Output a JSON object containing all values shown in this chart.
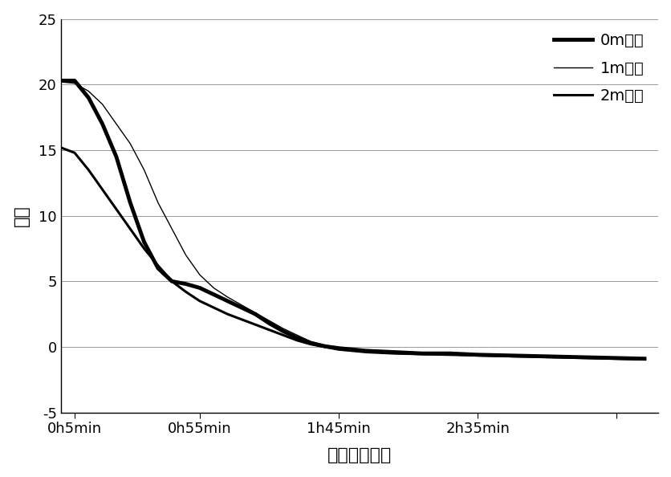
{
  "title": "",
  "xlabel": "预冷累计时间",
  "ylabel": "温度",
  "ylim": [
    -5,
    25
  ],
  "yticks": [
    -5,
    0,
    5,
    10,
    15,
    20,
    25
  ],
  "xtick_labels": [
    "0h5min",
    "0h55min",
    "1h45min",
    "2h35min"
  ],
  "xtick_positions": [
    5,
    50,
    100,
    150
  ],
  "xtick_minor_positions": [
    200
  ],
  "x_values": [
    0,
    5,
    10,
    15,
    20,
    25,
    30,
    35,
    40,
    45,
    50,
    55,
    60,
    65,
    70,
    75,
    80,
    85,
    90,
    95,
    100,
    110,
    120,
    130,
    140,
    150,
    160,
    170,
    180,
    190,
    200,
    210
  ],
  "line0_y": [
    20.3,
    20.3,
    19.0,
    17.0,
    14.5,
    11.0,
    8.0,
    6.0,
    5.0,
    4.8,
    4.5,
    4.0,
    3.5,
    3.0,
    2.5,
    1.8,
    1.2,
    0.7,
    0.3,
    0.05,
    -0.1,
    -0.3,
    -0.4,
    -0.5,
    -0.5,
    -0.6,
    -0.65,
    -0.7,
    -0.75,
    -0.8,
    -0.85,
    -0.9
  ],
  "line1_y": [
    20.2,
    20.1,
    19.5,
    18.5,
    17.0,
    15.5,
    13.5,
    11.0,
    9.0,
    7.0,
    5.5,
    4.5,
    3.8,
    3.2,
    2.6,
    2.0,
    1.4,
    0.9,
    0.4,
    0.1,
    -0.1,
    -0.3,
    -0.45,
    -0.5,
    -0.55,
    -0.6,
    -0.65,
    -0.7,
    -0.75,
    -0.8,
    -0.85,
    -0.9
  ],
  "line2_y": [
    15.2,
    14.8,
    13.5,
    12.0,
    10.5,
    9.0,
    7.5,
    6.2,
    5.0,
    4.2,
    3.5,
    3.0,
    2.5,
    2.1,
    1.7,
    1.3,
    0.9,
    0.5,
    0.2,
    0.0,
    -0.2,
    -0.4,
    -0.5,
    -0.55,
    -0.6,
    -0.65,
    -0.7,
    -0.75,
    -0.8,
    -0.85,
    -0.9,
    -0.95
  ],
  "line0_label": "0m距离",
  "line1_label": "1m距离",
  "line2_label": "2m距离",
  "line0_lw": 3.5,
  "line1_lw": 1.0,
  "line2_lw": 2.2,
  "line_color": "#000000",
  "background_color": "#ffffff",
  "grid_color": "#999999"
}
